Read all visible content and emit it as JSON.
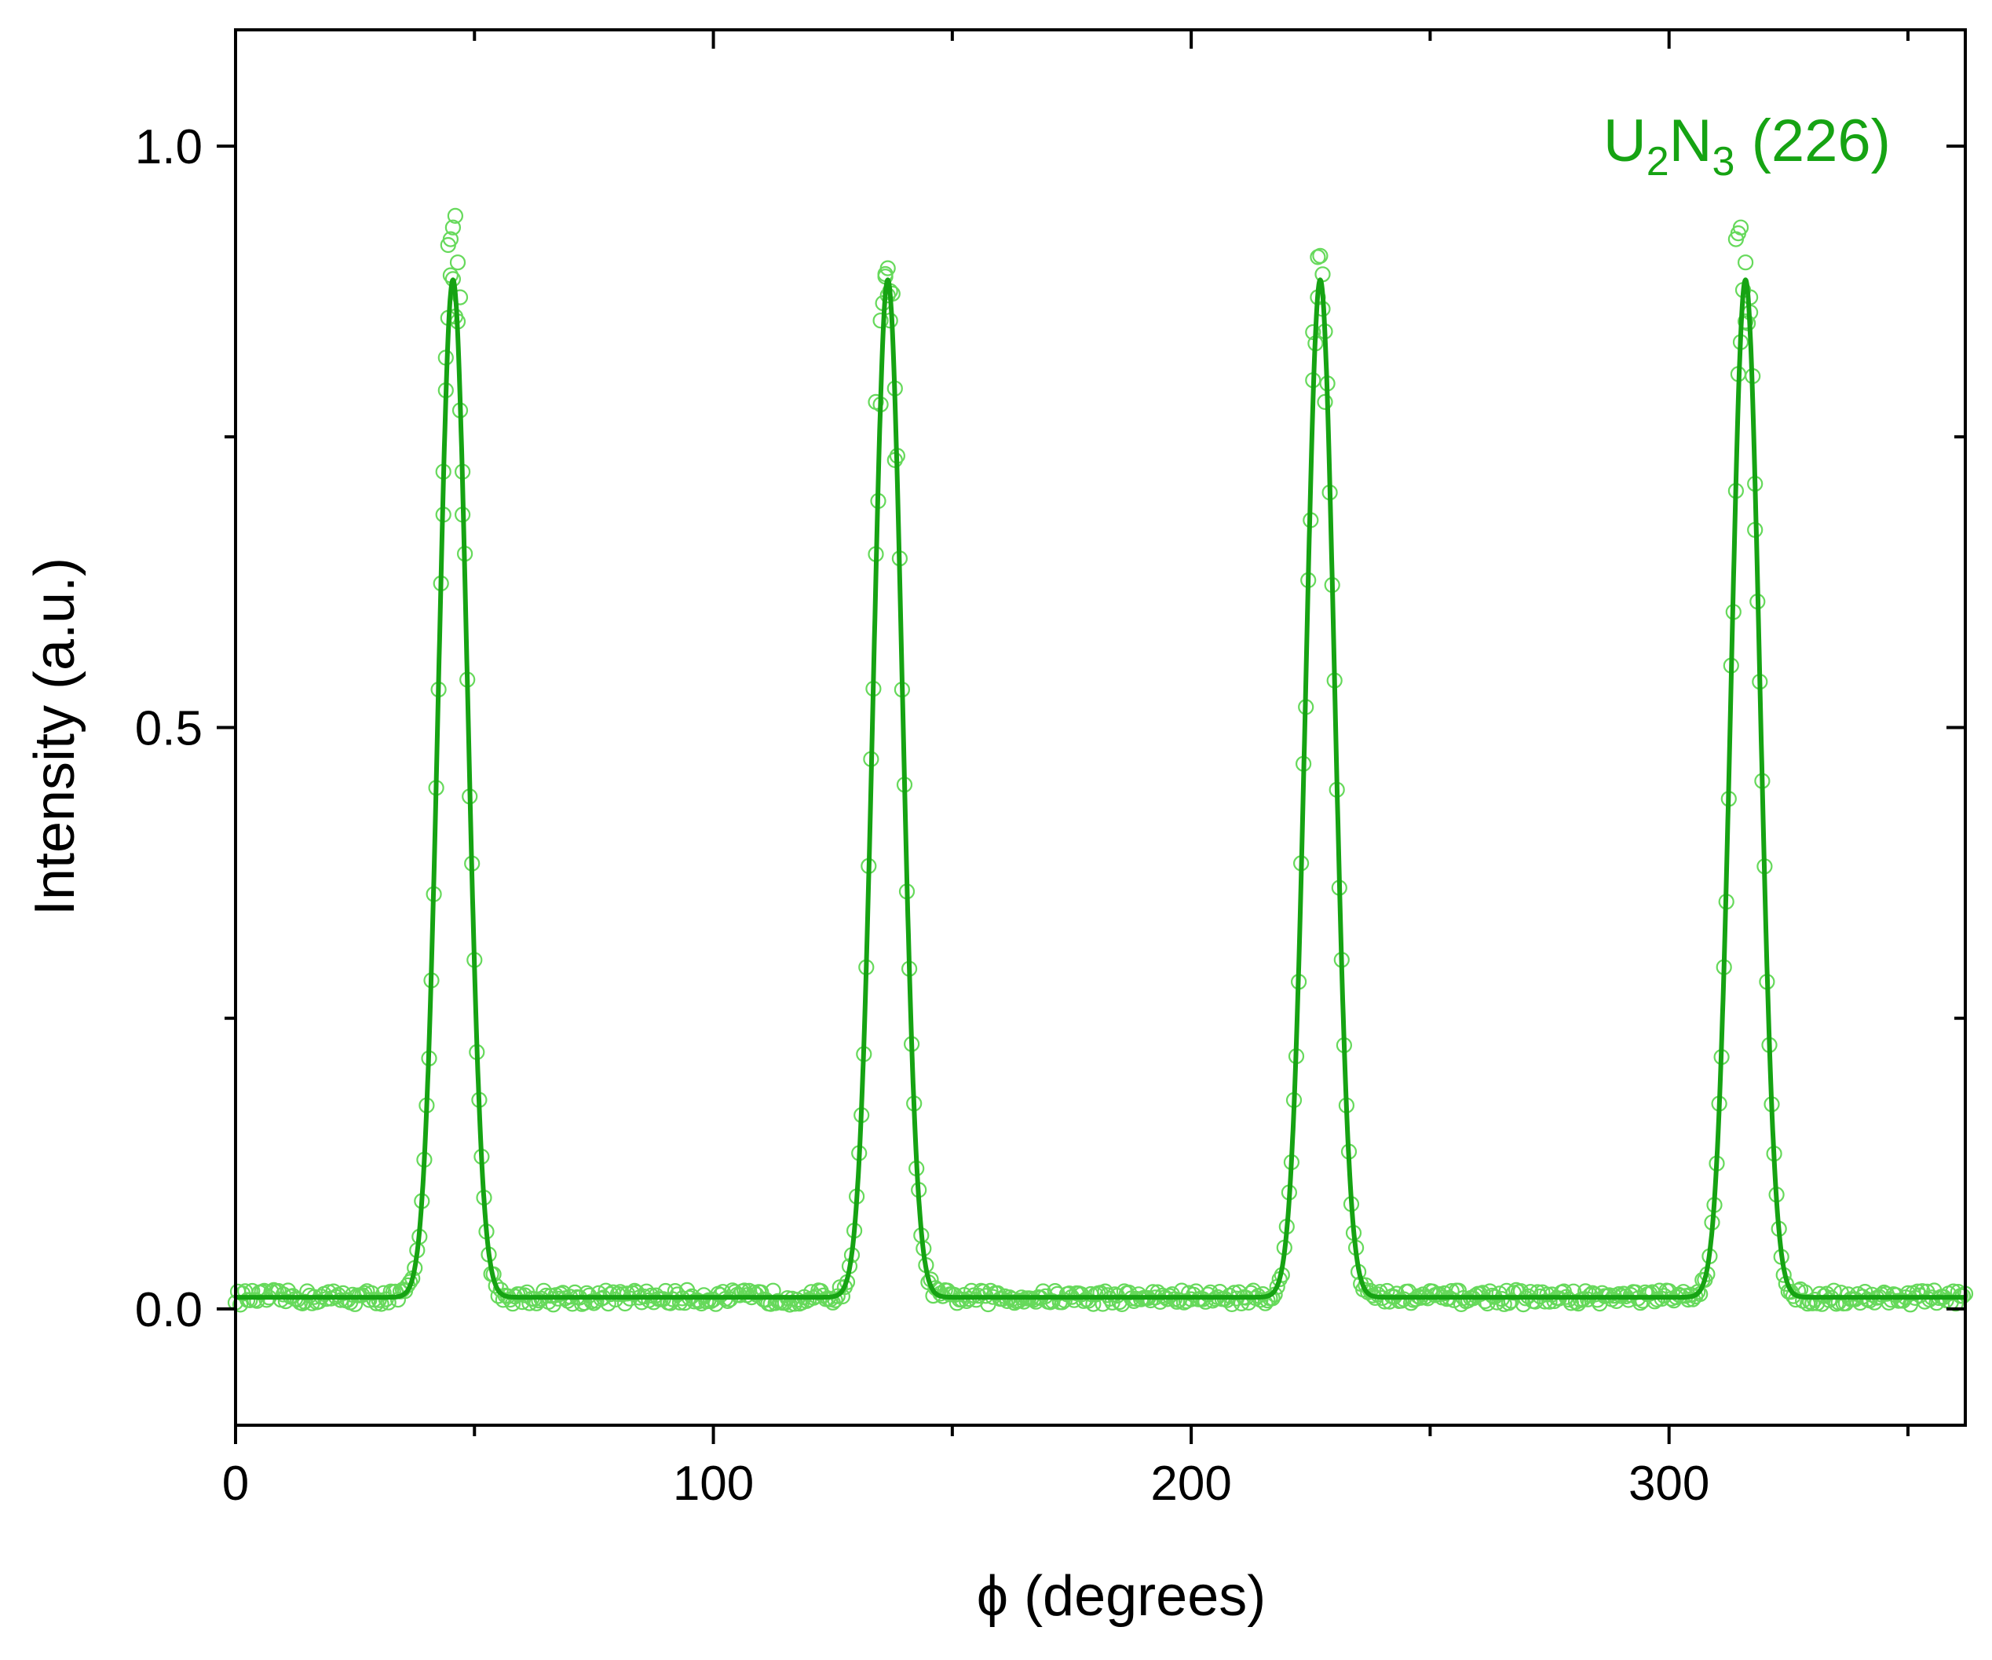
{
  "chart_data": {
    "type": "scatter",
    "title": "",
    "xlabel": "ϕ (degrees)",
    "ylabel": "Intensity (a.u.)",
    "xlim": [
      0,
      362
    ],
    "ylim": [
      -0.1,
      1.1
    ],
    "x_ticks": [
      0,
      100,
      200,
      300
    ],
    "x_tick_labels": [
      "0",
      "100",
      "200",
      "300"
    ],
    "x_minor_ticks": [
      50,
      150,
      250,
      350
    ],
    "y_ticks": [
      0.0,
      0.5,
      1.0
    ],
    "y_tick_labels": [
      "0.0",
      "0.5",
      "1.0"
    ],
    "y_minor_ticks": [
      0.25,
      0.75
    ],
    "grid": false,
    "legend_placement": "top-right",
    "legend_label": {
      "base1": "U",
      "sub1": "2",
      "base2": "N",
      "sub2": "3",
      "rest": " (226)"
    },
    "colors": {
      "points": "#66d95b",
      "fit": "#16a313",
      "axes": "#000000"
    },
    "baseline": 0.01,
    "series": [
      {
        "kind": "measured-points",
        "marker": "open-circle",
        "x_range": [
          0,
          362
        ],
        "x_step": 0.5,
        "noise_amplitude": 0.012
      },
      {
        "kind": "fit-line",
        "peaks": [
          {
            "center": 45.5,
            "height": 0.875,
            "width": 3.0
          },
          {
            "center": 136.5,
            "height": 0.875,
            "width": 3.0
          },
          {
            "center": 227.0,
            "height": 0.875,
            "width": 3.0
          },
          {
            "center": 316.0,
            "height": 0.875,
            "width": 3.0
          }
        ]
      }
    ],
    "peak_top_points": [
      [
        43.5,
        0.72
      ],
      [
        44.0,
        0.79
      ],
      [
        44.5,
        0.915
      ],
      [
        45.0,
        0.92
      ],
      [
        45.5,
        0.93
      ],
      [
        46.0,
        0.94
      ],
      [
        46.5,
        0.9
      ],
      [
        47.0,
        0.87
      ],
      [
        47.5,
        0.72
      ],
      [
        134.0,
        0.78
      ],
      [
        135.0,
        0.85
      ],
      [
        136.0,
        0.89
      ],
      [
        136.5,
        0.895
      ],
      [
        137.0,
        0.85
      ],
      [
        138.0,
        0.73
      ],
      [
        225.5,
        0.84
      ],
      [
        226.5,
        0.87
      ],
      [
        227.5,
        0.86
      ],
      [
        228.0,
        0.78
      ],
      [
        314.0,
        0.92
      ],
      [
        314.5,
        0.925
      ],
      [
        315.0,
        0.93
      ],
      [
        316.0,
        0.9
      ],
      [
        317.0,
        0.87
      ],
      [
        318.0,
        0.67
      ]
    ]
  }
}
